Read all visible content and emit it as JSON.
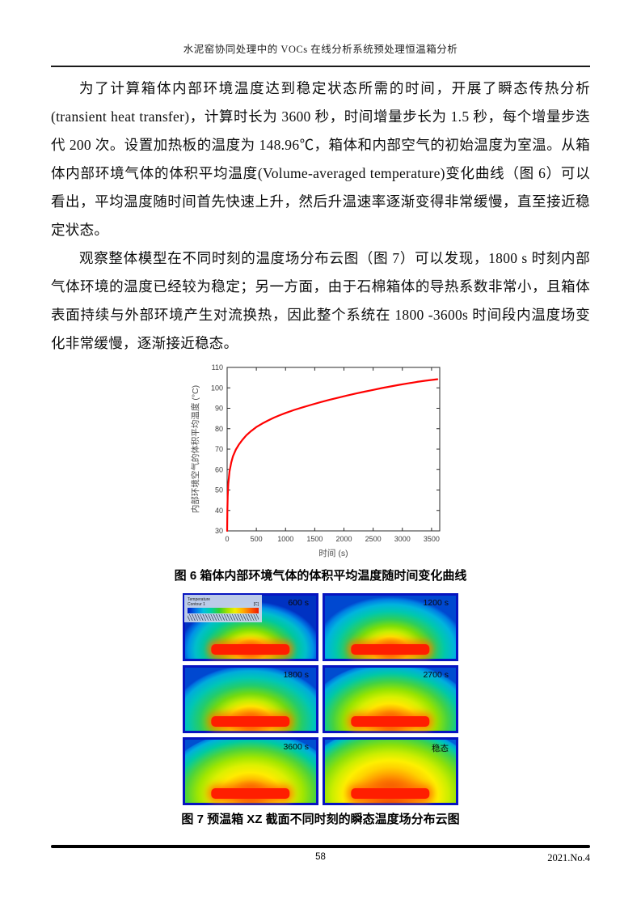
{
  "header": {
    "title": "水泥窑协同处理中的 VOCs 在线分析系统预处理恒温箱分析"
  },
  "paragraphs": [
    "为了计算箱体内部环境温度达到稳定状态所需的时间，开展了瞬态传热分析(transient heat transfer)，计算时长为 3600 秒，时间增量步长为 1.5 秒，每个增量步迭代 200 次。设置加热板的温度为 148.96℃，箱体和内部空气的初始温度为室温。从箱体内部环境气体的体积平均温度(Volume-averaged temperature)变化曲线（图 6）可以看出，平均温度随时间首先快速上升，然后升温速率逐渐变得非常缓慢，直至接近稳定状态。",
    "观察整体模型在不同时刻的温度场分布云图（图 7）可以发现，1800 s 时刻内部气体环境的温度已经较为稳定；另一方面，由于石棉箱体的导热系数非常小，且箱体表面持续与外部环境产生对流换热，因此整个系统在 1800 -3600s 时间段内温度场变化非常缓慢，逐渐接近稳态。"
  ],
  "figure6": {
    "caption": "图 6 箱体内部环境气体的体积平均温度随时间变化曲线"
  },
  "chart_data": {
    "type": "line",
    "title": "",
    "xlabel": "时间 (s)",
    "ylabel": "内部环境空气的体积平均温度 (°C)",
    "xlim": [
      0,
      3640
    ],
    "ylim": [
      30,
      110
    ],
    "x_ticks": [
      0,
      500,
      1000,
      1500,
      2000,
      2500,
      3000,
      3500
    ],
    "y_ticks": [
      30,
      40,
      50,
      60,
      70,
      80,
      90,
      100,
      110
    ],
    "grid": false,
    "legend_position": "none",
    "line_color": "#ff0000",
    "series": [
      {
        "name": "体积平均温度",
        "points": [
          [
            0,
            30
          ],
          [
            4,
            40
          ],
          [
            10,
            47
          ],
          [
            20,
            53
          ],
          [
            40,
            59
          ],
          [
            70,
            63.5
          ],
          [
            100,
            66.5
          ],
          [
            150,
            69.8
          ],
          [
            200,
            72.2
          ],
          [
            260,
            74.5
          ],
          [
            330,
            76.8
          ],
          [
            400,
            78.6
          ],
          [
            500,
            80.8
          ],
          [
            600,
            82.5
          ],
          [
            700,
            84
          ],
          [
            800,
            85.4
          ],
          [
            900,
            86.6
          ],
          [
            1000,
            87.7
          ],
          [
            1150,
            89.2
          ],
          [
            1300,
            90.5
          ],
          [
            1450,
            91.8
          ],
          [
            1600,
            93
          ],
          [
            1750,
            94.1
          ],
          [
            1900,
            95.2
          ],
          [
            2050,
            96.2
          ],
          [
            2200,
            97.2
          ],
          [
            2350,
            98.1
          ],
          [
            2500,
            99
          ],
          [
            2650,
            99.9
          ],
          [
            2800,
            100.7
          ],
          [
            2950,
            101.5
          ],
          [
            3100,
            102.2
          ],
          [
            3250,
            102.9
          ],
          [
            3400,
            103.5
          ],
          [
            3600,
            104.2
          ]
        ]
      }
    ]
  },
  "figure7": {
    "caption": "图 7 预温箱 XZ 截面不同时刻的瞬态温度场分布云图",
    "legend": {
      "title": "Temperature",
      "subtitle": "Contour 1",
      "unit": "[C]"
    },
    "panels": [
      {
        "label": "600 s"
      },
      {
        "label": "1200 s"
      },
      {
        "label": "1800 s"
      },
      {
        "label": "2700 s"
      },
      {
        "label": "3600 s"
      },
      {
        "label": "稳态"
      }
    ]
  },
  "footer": {
    "page_number": "58",
    "issue": "2021.No.4"
  },
  "colors": {
    "curve": "#ff0000",
    "contour_hot": "#ff1e00",
    "contour_cold_edge": "#0714c0",
    "text": "#111111"
  }
}
